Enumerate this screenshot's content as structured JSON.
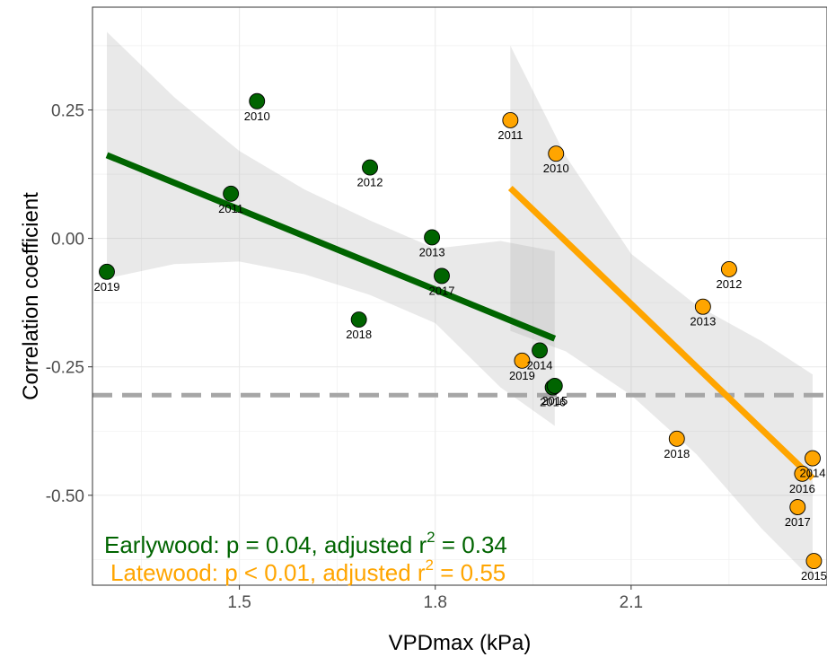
{
  "chart_data": {
    "type": "scatter",
    "xlabel": "VPDmax (kPa)",
    "ylabel": "Correlation coefficient",
    "xlim": [
      1.275,
      2.4
    ],
    "ylim": [
      -0.675,
      0.45
    ],
    "x_ticks": [
      1.5,
      1.8,
      2.1
    ],
    "x_tick_labels": [
      "1.5",
      "1.8",
      "2.1"
    ],
    "y_ticks": [
      0.25,
      0.0,
      -0.25,
      -0.5
    ],
    "y_tick_labels": [
      "0.25",
      "0.00",
      "-0.25",
      "-0.50"
    ],
    "grid": true,
    "reference_line": {
      "y": -0.305,
      "style": "dashed",
      "color": "#a6a6a6"
    },
    "series": [
      {
        "color": "#006400",
        "points": [
          {
            "x": 1.297,
            "y": -0.065,
            "label": "2019"
          },
          {
            "x": 1.487,
            "y": 0.087,
            "label": "2011"
          },
          {
            "x": 1.527,
            "y": 0.267,
            "label": "2010"
          },
          {
            "x": 1.7,
            "y": 0.138,
            "label": "2012"
          },
          {
            "x": 1.683,
            "y": -0.158,
            "label": "2018"
          },
          {
            "x": 1.795,
            "y": 0.002,
            "label": "2013"
          },
          {
            "x": 1.81,
            "y": -0.073,
            "label": "2017"
          },
          {
            "x": 1.96,
            "y": -0.218,
            "label": "2014"
          },
          {
            "x": 1.98,
            "y": -0.29,
            "label": "2016"
          },
          {
            "x": 1.983,
            "y": -0.287,
            "label": "2015"
          }
        ],
        "fit": {
          "x": [
            1.297,
            1.983
          ],
          "y": [
            0.162,
            -0.195
          ],
          "band_x": [
            1.297,
            1.4,
            1.5,
            1.6,
            1.7,
            1.8,
            1.9,
            1.983
          ],
          "band_upper": [
            0.402,
            0.275,
            0.17,
            0.095,
            0.035,
            -0.02,
            -0.005,
            -0.025
          ],
          "band_lower": [
            -0.078,
            -0.05,
            -0.045,
            -0.07,
            -0.11,
            -0.165,
            -0.29,
            -0.365
          ]
        }
      },
      {
        "color": "#ffa500",
        "points": [
          {
            "x": 1.915,
            "y": 0.23,
            "label": "2011"
          },
          {
            "x": 1.985,
            "y": 0.165,
            "label": "2010"
          },
          {
            "x": 1.933,
            "y": -0.238,
            "label": "2019"
          },
          {
            "x": 2.25,
            "y": -0.06,
            "label": "2012"
          },
          {
            "x": 2.21,
            "y": -0.133,
            "label": "2013"
          },
          {
            "x": 2.17,
            "y": -0.39,
            "label": "2018"
          },
          {
            "x": 2.378,
            "y": -0.428,
            "label": "2014"
          },
          {
            "x": 2.362,
            "y": -0.458,
            "label": "2016"
          },
          {
            "x": 2.355,
            "y": -0.523,
            "label": "2017"
          },
          {
            "x": 2.38,
            "y": -0.628,
            "label": "2015"
          }
        ],
        "fit": {
          "x": [
            1.915,
            2.378
          ],
          "y": [
            0.098,
            -0.467
          ],
          "band_x": [
            1.915,
            2.0,
            2.1,
            2.2,
            2.3,
            2.378
          ],
          "band_upper": [
            0.375,
            0.16,
            -0.03,
            -0.13,
            -0.2,
            -0.265
          ],
          "band_lower": [
            -0.18,
            -0.22,
            -0.305,
            -0.42,
            -0.565,
            -0.665
          ]
        }
      }
    ],
    "annotations": [
      {
        "text_prefix": "Earlywood: p = 0.04, adjusted r",
        "superscript": "2",
        "text_suffix": " = 0.34",
        "color": "#006400"
      },
      {
        "text_prefix": "Latewood: p < 0.01, adjusted r",
        "superscript": "2",
        "text_suffix": " = 0.55",
        "color": "#ffa500"
      }
    ]
  }
}
